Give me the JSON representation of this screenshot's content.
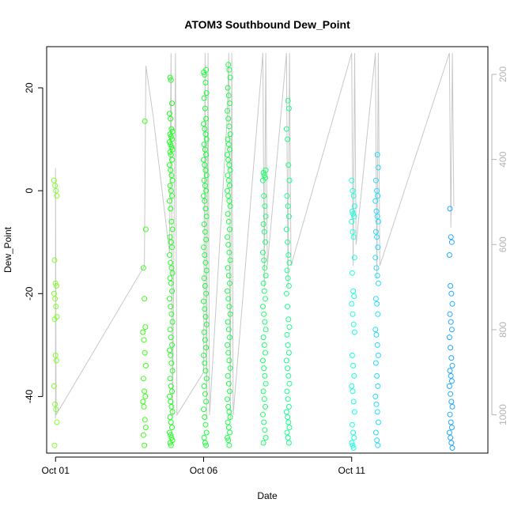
{
  "chart_data": {
    "type": "scatter",
    "title": "ATOM3 Southbound Dew_Point",
    "xlabel": "Date",
    "ylabel": "Dew_Point",
    "x_ticks": [
      {
        "label": "Oct 01",
        "day": 1
      },
      {
        "label": "Oct 06",
        "day": 6
      },
      {
        "label": "Oct 11",
        "day": 11
      }
    ],
    "y_ticks": [
      -40,
      -20,
      0,
      20
    ],
    "y2_ticks": [
      200,
      400,
      600,
      800,
      1000
    ],
    "xlim_days": [
      0.7,
      15.6
    ],
    "ylim": [
      -51,
      28
    ],
    "y2lim": [
      1090,
      135
    ],
    "grid": false,
    "legend": "none",
    "colors": {
      "axis": "#000000",
      "secondary_axis": "#b4b4b4",
      "pressure_line": "#c8c8c8"
    },
    "point_groups": [
      {
        "day": 1.0,
        "values": [
          2,
          1,
          0,
          -1,
          -13.5,
          -18,
          -18.5,
          -20,
          -21,
          -22.5,
          -24.5,
          -25,
          -32,
          -33,
          -38,
          -41.5,
          -42.5,
          -45,
          -49.5
        ],
        "color": "#7fff2a"
      },
      {
        "day": 4.0,
        "values": [
          13.5,
          -7.5,
          -15,
          -21,
          -26.5,
          -27.5,
          -29,
          -31.5,
          -34,
          -36.5,
          -39,
          -40,
          -41,
          -42,
          -44.5,
          -46,
          -47.5,
          -49.5
        ],
        "color": "#3cff1a"
      },
      {
        "day": 4.9,
        "values": [
          22,
          21.5,
          17,
          15,
          14,
          12,
          11.5,
          11,
          10.5,
          10,
          9.5,
          9,
          8.5,
          8,
          7.5,
          7,
          6,
          5,
          4,
          3,
          2,
          1,
          0,
          -1,
          -2,
          -3.5,
          -6,
          -7.5,
          -9,
          -10,
          -11,
          -12.5,
          -14,
          -15,
          -16,
          -17,
          -18,
          -19.5,
          -21,
          -22.5,
          -24,
          -25.5,
          -27,
          -28.5,
          -30,
          -31,
          -32,
          -33.5,
          -35,
          -36.5,
          -38,
          -39,
          -40,
          -41,
          -42,
          -43,
          -44,
          -45,
          -46,
          -47,
          -47.5,
          -48,
          -48.5,
          -49,
          -49.5
        ],
        "color": "#22ff22"
      },
      {
        "day": 6.05,
        "values": [
          23.5,
          23,
          22.5,
          21,
          19,
          18,
          16,
          14,
          13,
          12,
          11,
          10,
          9,
          8,
          7,
          6,
          5,
          4,
          3,
          2,
          1,
          0,
          -1,
          -2,
          -3.5,
          -5,
          -6.5,
          -8,
          -9.5,
          -11,
          -12.5,
          -14,
          -15.5,
          -17,
          -18.5,
          -20,
          -21.5,
          -23,
          -24.5,
          -26,
          -27.5,
          -29,
          -30.5,
          -32,
          -33.5,
          -35,
          -36.5,
          -38,
          -39.5,
          -41,
          -42.5,
          -44,
          -45.5,
          -47,
          -48,
          -49,
          -49.5
        ],
        "color": "#1aff3a"
      },
      {
        "day": 6.85,
        "values": [
          24.5,
          23.5,
          22,
          20,
          18.5,
          17,
          15.5,
          14,
          12.5,
          11,
          10,
          9,
          8,
          7,
          6,
          5,
          4,
          3,
          2,
          1,
          0,
          -1,
          -2,
          -3,
          -4.5,
          -6,
          -7.5,
          -9,
          -10.5,
          -12,
          -13.5,
          -15,
          -16.5,
          -18,
          -19.5,
          -21,
          -22.5,
          -24,
          -25.5,
          -27,
          -28.5,
          -30,
          -31.5,
          -33,
          -34.5,
          -36,
          -37.5,
          -39,
          -40.5,
          -42,
          -43,
          -44,
          -45,
          -46,
          -47,
          -48,
          -48.5,
          -49.5
        ],
        "color": "#1aff4a"
      },
      {
        "day": 8.05,
        "values": [
          4,
          3.5,
          3,
          2.5,
          2,
          -1,
          -3,
          -5,
          -6.5,
          -8,
          -10,
          -12,
          -13.5,
          -15,
          -16.5,
          -18,
          -19.5,
          -21,
          -22.5,
          -24,
          -25.5,
          -27,
          -28.5,
          -30,
          -31.5,
          -33,
          -34.5,
          -36,
          -37.5,
          -39,
          -40.5,
          -42,
          -43.5,
          -45,
          -46.5,
          -48,
          -49
        ],
        "color": "#1aff6a"
      },
      {
        "day": 8.85,
        "values": [
          17.5,
          16,
          12,
          10,
          5,
          2,
          -1,
          -3,
          -5,
          -7.5,
          -10,
          -12.5,
          -14,
          -15.5,
          -17,
          -18.5,
          -20,
          -22.5,
          -25,
          -26.5,
          -28,
          -30,
          -31.5,
          -33,
          -34.5,
          -36,
          -37.5,
          -39,
          -40.5,
          -42,
          -43,
          -44,
          -45,
          -46,
          -47,
          -48,
          -49
        ],
        "color": "#1aff8a"
      },
      {
        "day": 11.05,
        "values": [
          2,
          0,
          -1,
          -3,
          -4,
          -4.5,
          -5,
          -6,
          -8,
          -9,
          -13,
          -16,
          -19.5,
          -20.5,
          -22,
          -24,
          -26,
          -27.5,
          -32,
          -34,
          -36,
          -38,
          -39,
          -41,
          -43,
          -45.5,
          -47,
          -48,
          -49,
          -49.5,
          -50
        ],
        "color": "#1affdc"
      },
      {
        "day": 11.85,
        "values": [
          7,
          4.5,
          2,
          0,
          -1,
          -2,
          -4,
          -5,
          -6,
          -8,
          -9,
          -11,
          -13,
          -15,
          -16.5,
          -18,
          -21,
          -22,
          -24,
          -27,
          -28,
          -30,
          -32,
          -33.5,
          -36,
          -38,
          -40,
          -41.5,
          -43,
          -45,
          -47,
          -48.5,
          -49.5
        ],
        "color": "#22dcff"
      },
      {
        "day": 14.35,
        "values": [
          -3.5,
          -9,
          -10,
          -12.5,
          -18.5,
          -20,
          -22,
          -24,
          -25.5,
          -27,
          -28.5,
          -30.5,
          -32.5,
          -34,
          -35,
          -36,
          -37,
          -38,
          -39.5,
          -41,
          -42,
          -43.5,
          -45,
          -46,
          -47,
          -48,
          -49,
          -50
        ],
        "color": "#22aaff"
      }
    ],
    "pressure_series": [
      {
        "day": 1.0,
        "p": 1010
      },
      {
        "day": 1.0,
        "p": 420
      },
      {
        "day": 1.02,
        "p": 1000
      },
      {
        "day": 4.0,
        "p": 650
      },
      {
        "day": 4.05,
        "p": 180
      },
      {
        "day": 4.3,
        "p": 300
      },
      {
        "day": 4.85,
        "p": 620
      },
      {
        "day": 4.9,
        "p": 150
      },
      {
        "day": 4.95,
        "p": 1010
      },
      {
        "day": 5.05,
        "p": 150
      },
      {
        "day": 5.1,
        "p": 1000
      },
      {
        "day": 6.0,
        "p": 900
      },
      {
        "day": 6.05,
        "p": 150
      },
      {
        "day": 6.1,
        "p": 1010
      },
      {
        "day": 6.15,
        "p": 150
      },
      {
        "day": 6.2,
        "p": 1000
      },
      {
        "day": 6.8,
        "p": 300
      },
      {
        "day": 6.85,
        "p": 150
      },
      {
        "day": 6.9,
        "p": 1010
      },
      {
        "day": 6.95,
        "p": 150
      },
      {
        "day": 7.0,
        "p": 1000
      },
      {
        "day": 8.0,
        "p": 150
      },
      {
        "day": 8.05,
        "p": 700
      },
      {
        "day": 8.1,
        "p": 150
      },
      {
        "day": 8.15,
        "p": 650
      },
      {
        "day": 8.8,
        "p": 150
      },
      {
        "day": 8.85,
        "p": 700
      },
      {
        "day": 8.9,
        "p": 150
      },
      {
        "day": 8.95,
        "p": 650
      },
      {
        "day": 11.0,
        "p": 150
      },
      {
        "day": 11.05,
        "p": 650
      },
      {
        "day": 11.1,
        "p": 150
      },
      {
        "day": 11.15,
        "p": 600
      },
      {
        "day": 11.8,
        "p": 150
      },
      {
        "day": 11.85,
        "p": 680
      },
      {
        "day": 11.9,
        "p": 150
      },
      {
        "day": 11.95,
        "p": 650
      },
      {
        "day": 14.3,
        "p": 150
      },
      {
        "day": 14.35,
        "p": 560
      },
      {
        "day": 14.4,
        "p": 150
      },
      {
        "day": 14.45,
        "p": 510
      }
    ]
  }
}
